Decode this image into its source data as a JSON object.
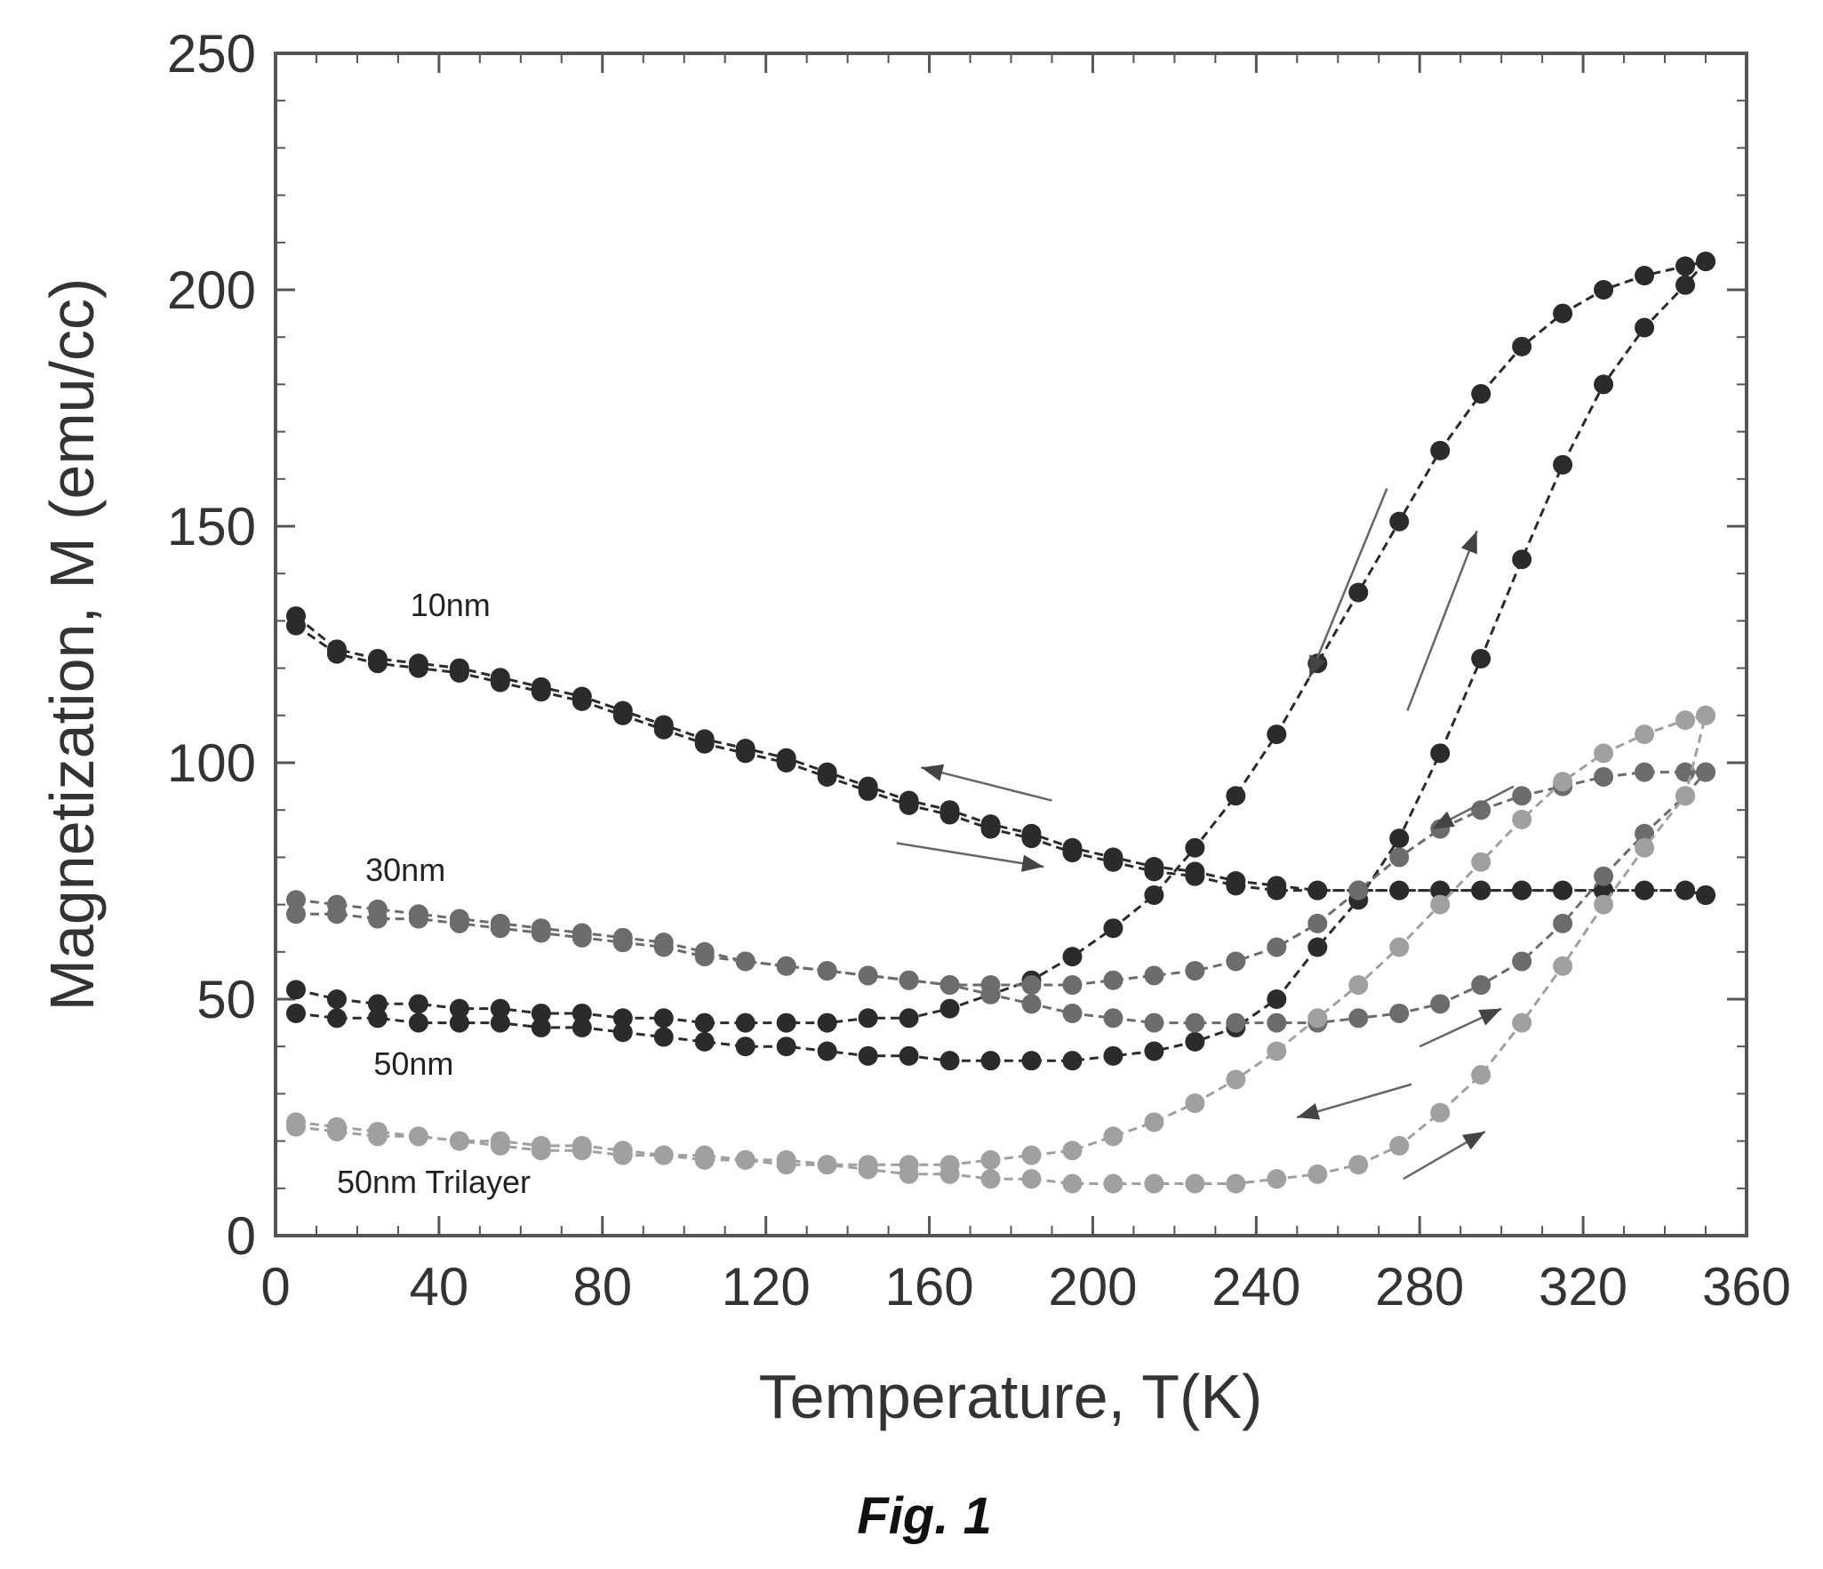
{
  "chart_data": {
    "type": "line",
    "title": "",
    "xlabel": "Temperature, T(K)",
    "ylabel": "Magnetization, M (emu/cc)",
    "xlim": [
      0,
      360
    ],
    "ylim": [
      0,
      250
    ],
    "xticks": [
      0,
      40,
      80,
      120,
      160,
      200,
      240,
      280,
      320,
      360
    ],
    "yticks": [
      0,
      50,
      100,
      150,
      200,
      250
    ],
    "grid": false,
    "legend": "none",
    "caption": "Fig. 1",
    "annotations": [
      {
        "text": "10nm",
        "x": 33,
        "y": 131
      },
      {
        "text": "30nm",
        "x": 22,
        "y": 75
      },
      {
        "text": "50nm",
        "x": 24,
        "y": 34
      },
      {
        "text": "50nm Trilayer",
        "x": 15,
        "y": 9
      }
    ],
    "arrows": [
      {
        "from": [
          190,
          92
        ],
        "to": [
          158,
          99
        ]
      },
      {
        "from": [
          152,
          83
        ],
        "to": [
          188,
          78
        ]
      },
      {
        "from": [
          272,
          158
        ],
        "to": [
          253,
          118
        ]
      },
      {
        "from": [
          277,
          111
        ],
        "to": [
          294,
          149
        ]
      },
      {
        "from": [
          303,
          95
        ],
        "to": [
          283,
          86
        ]
      },
      {
        "from": [
          280,
          40
        ],
        "to": [
          300,
          48
        ]
      },
      {
        "from": [
          278,
          32
        ],
        "to": [
          250,
          25
        ]
      },
      {
        "from": [
          276,
          12
        ],
        "to": [
          296,
          22
        ]
      }
    ],
    "series": [
      {
        "color": "#2b2b2b",
        "x": [
          5,
          15,
          25,
          35,
          45,
          55,
          65,
          75,
          85,
          95,
          105,
          115,
          125,
          135,
          145,
          155,
          165,
          175,
          185,
          195,
          205,
          215,
          225,
          235,
          245,
          255,
          265,
          275,
          285,
          295,
          305,
          315,
          325,
          335,
          345,
          350
        ],
        "y": [
          131,
          124,
          122,
          121,
          120,
          118,
          116,
          114,
          111,
          108,
          105,
          103,
          101,
          98,
          95,
          92,
          90,
          87,
          85,
          82,
          80,
          78,
          77,
          75,
          74,
          73,
          73,
          73,
          73,
          73,
          73,
          73,
          73,
          73,
          73,
          72
        ]
      },
      {
        "color": "#2b2b2b",
        "x": [
          5,
          15,
          25,
          35,
          45,
          55,
          65,
          75,
          85,
          95,
          105,
          115,
          125,
          135,
          145,
          155,
          165,
          175,
          185,
          195,
          205,
          215,
          225,
          235,
          245,
          255,
          265,
          275,
          285,
          295,
          305,
          315,
          325,
          335,
          345,
          350
        ],
        "y": [
          129,
          123,
          121,
          120,
          119,
          117,
          115,
          113,
          110,
          107,
          104,
          102,
          100,
          97,
          94,
          91,
          89,
          86,
          84,
          81,
          79,
          77,
          76,
          74,
          73,
          73,
          73,
          73,
          73,
          73,
          73,
          73,
          73,
          73,
          73,
          72
        ]
      },
      {
        "color": "#2b2b2b",
        "x": [
          5,
          15,
          25,
          35,
          45,
          55,
          65,
          75,
          85,
          95,
          105,
          115,
          125,
          135,
          145,
          155,
          165,
          175,
          185,
          195,
          205,
          215,
          225,
          235,
          245,
          255,
          265,
          275,
          285,
          295,
          305,
          315,
          325,
          335,
          345,
          350
        ],
        "y": [
          52,
          50,
          49,
          49,
          48,
          48,
          47,
          47,
          46,
          46,
          45,
          45,
          45,
          45,
          46,
          46,
          48,
          51,
          54,
          59,
          65,
          72,
          82,
          93,
          106,
          121,
          136,
          151,
          166,
          178,
          188,
          195,
          200,
          203,
          205,
          206
        ]
      },
      {
        "color": "#2b2b2b",
        "x": [
          5,
          15,
          25,
          35,
          45,
          55,
          65,
          75,
          85,
          95,
          105,
          115,
          125,
          135,
          145,
          155,
          165,
          175,
          185,
          195,
          205,
          215,
          225,
          235,
          245,
          255,
          265,
          275,
          285,
          295,
          305,
          315,
          325,
          335,
          345,
          350
        ],
        "y": [
          47,
          46,
          46,
          45,
          45,
          45,
          44,
          44,
          43,
          42,
          41,
          40,
          40,
          39,
          38,
          38,
          37,
          37,
          37,
          37,
          38,
          39,
          41,
          44,
          50,
          61,
          71,
          84,
          102,
          122,
          143,
          163,
          180,
          192,
          201,
          206
        ]
      },
      {
        "color": "#6c6c6c",
        "x": [
          5,
          15,
          25,
          35,
          45,
          55,
          65,
          75,
          85,
          95,
          105,
          115,
          125,
          135,
          145,
          155,
          165,
          175,
          185,
          195,
          205,
          215,
          225,
          235,
          245,
          255,
          265,
          275,
          285,
          295,
          305,
          315,
          325,
          335,
          345,
          350
        ],
        "y": [
          71,
          70,
          69,
          68,
          67,
          66,
          65,
          64,
          63,
          62,
          60,
          58,
          57,
          56,
          55,
          54,
          53,
          53,
          53,
          53,
          54,
          55,
          56,
          58,
          61,
          66,
          73,
          80,
          86,
          90,
          93,
          95,
          97,
          98,
          98,
          98
        ]
      },
      {
        "color": "#6c6c6c",
        "x": [
          5,
          15,
          25,
          35,
          45,
          55,
          65,
          75,
          85,
          95,
          105,
          115,
          125,
          135,
          145,
          155,
          165,
          175,
          185,
          195,
          205,
          215,
          225,
          235,
          245,
          255,
          265,
          275,
          285,
          295,
          305,
          315,
          325,
          335,
          345,
          350
        ],
        "y": [
          68,
          68,
          67,
          67,
          66,
          65,
          64,
          63,
          62,
          61,
          59,
          58,
          57,
          56,
          55,
          54,
          53,
          51,
          49,
          47,
          46,
          45,
          45,
          45,
          45,
          45,
          46,
          47,
          49,
          53,
          58,
          66,
          76,
          85,
          93,
          98
        ]
      },
      {
        "color": "#a0a0a0",
        "x": [
          5,
          15,
          25,
          35,
          45,
          55,
          65,
          75,
          85,
          95,
          105,
          115,
          125,
          135,
          145,
          155,
          165,
          175,
          185,
          195,
          205,
          215,
          225,
          235,
          245,
          255,
          265,
          275,
          285,
          295,
          305,
          315,
          325,
          335,
          345,
          350
        ],
        "y": [
          24,
          23,
          22,
          21,
          20,
          19,
          18,
          18,
          17,
          17,
          16,
          16,
          16,
          15,
          15,
          15,
          15,
          16,
          17,
          18,
          21,
          24,
          28,
          33,
          39,
          46,
          53,
          61,
          70,
          79,
          88,
          96,
          102,
          106,
          109,
          110
        ]
      },
      {
        "color": "#a0a0a0",
        "x": [
          5,
          15,
          25,
          35,
          45,
          55,
          65,
          75,
          85,
          95,
          105,
          115,
          125,
          135,
          145,
          155,
          165,
          175,
          185,
          195,
          205,
          215,
          225,
          235,
          245,
          255,
          265,
          275,
          285,
          295,
          305,
          315,
          325,
          335,
          345,
          350
        ],
        "y": [
          23,
          22,
          21,
          21,
          20,
          20,
          19,
          19,
          18,
          17,
          17,
          16,
          15,
          15,
          14,
          13,
          13,
          12,
          12,
          11,
          11,
          11,
          11,
          11,
          12,
          13,
          15,
          19,
          26,
          34,
          45,
          57,
          70,
          82,
          93,
          110
        ]
      }
    ]
  }
}
